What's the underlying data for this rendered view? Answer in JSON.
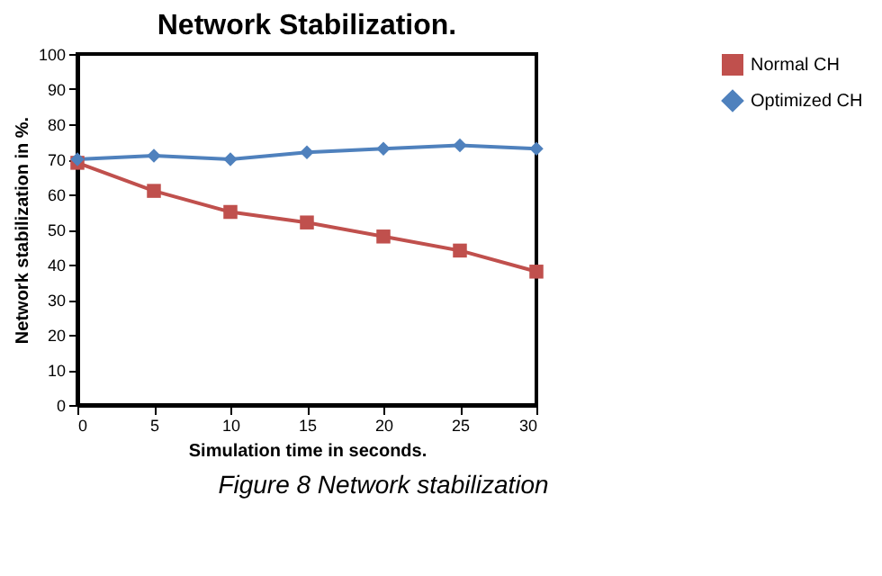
{
  "chart_data": {
    "type": "line",
    "title": "Network Stabilization.",
    "xlabel": "Simulation time in seconds.",
    "ylabel": "Network stabilization in %.",
    "x": [
      0,
      5,
      10,
      15,
      20,
      25,
      30
    ],
    "series": [
      {
        "name": "Normal CH",
        "color": "#c0504d",
        "marker": "square",
        "values": [
          69,
          61,
          55,
          52,
          48,
          44,
          38
        ]
      },
      {
        "name": "Optimized CH",
        "color": "#4f81bd",
        "marker": "diamond",
        "values": [
          70,
          71,
          70,
          72,
          73,
          74,
          73
        ]
      }
    ],
    "xlim": [
      0,
      30
    ],
    "xticks": [
      0,
      5,
      10,
      15,
      20,
      25,
      30
    ],
    "ylim": [
      0,
      100
    ],
    "yticks": [
      0,
      10,
      20,
      30,
      40,
      50,
      60,
      70,
      80,
      90,
      100
    ],
    "grid": false,
    "legend": "right",
    "annotations": [
      "Figure 8 Network stabilization"
    ]
  }
}
